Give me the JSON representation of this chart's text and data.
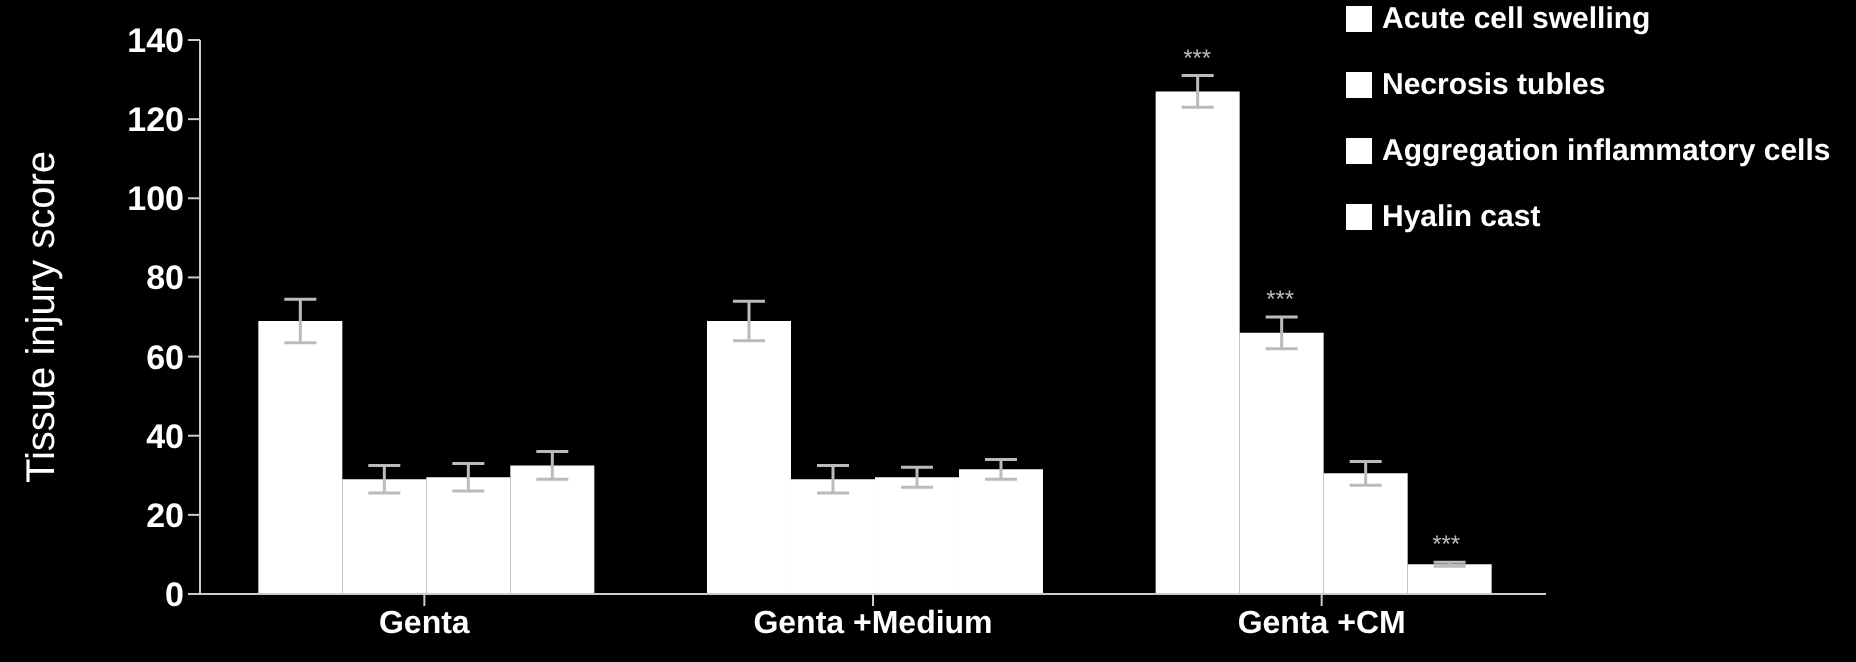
{
  "chart_data": {
    "type": "bar",
    "ylabel": "Tissue injury score",
    "categories": [
      "Genta",
      "Genta +Medium",
      "Genta +CM"
    ],
    "series": [
      {
        "name": "Acute cell swelling",
        "color": "#ffffff",
        "values": [
          69,
          69,
          127
        ],
        "errors": [
          5.5,
          5,
          4
        ],
        "value_labels": [
          null,
          null,
          "***"
        ]
      },
      {
        "name": "Necrosis tubles",
        "color": "#ffffff",
        "values": [
          29,
          29,
          66
        ],
        "errors": [
          3.5,
          3.5,
          4
        ],
        "value_labels": [
          null,
          null,
          "***"
        ]
      },
      {
        "name": "Aggregation inflammatory cells",
        "color": "#ffffff",
        "values": [
          29.5,
          29.5,
          30.5
        ],
        "errors": [
          3.5,
          2.5,
          3
        ]
      },
      {
        "name": "Hyalin cast",
        "color": "#ffffff",
        "values": [
          32.5,
          31.5,
          7.5
        ],
        "errors": [
          3.5,
          2.5,
          0.5
        ],
        "value_labels": [
          null,
          null,
          "***"
        ]
      }
    ],
    "ylim": [
      0,
      140
    ],
    "yticks": [
      0,
      20,
      40,
      60,
      80,
      100,
      120,
      140
    ],
    "grid": false,
    "legend": "top right"
  }
}
